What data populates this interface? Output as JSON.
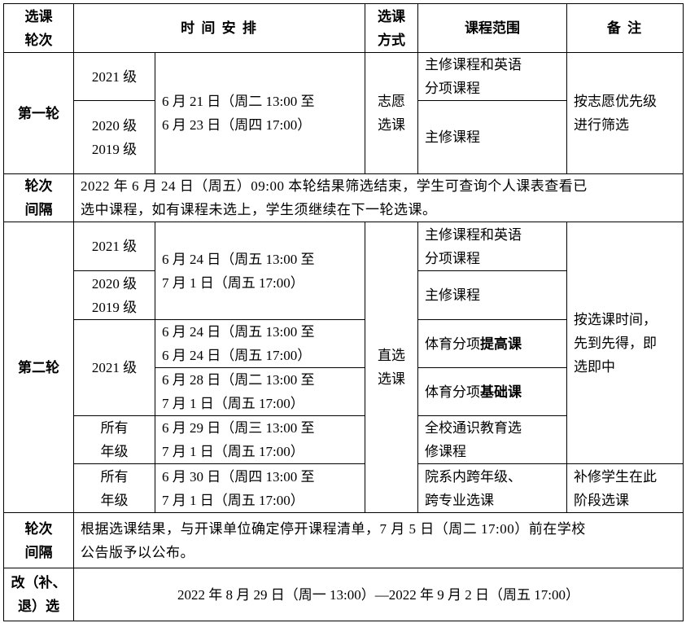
{
  "header": {
    "round": [
      "选课",
      "轮次"
    ],
    "schedule": "时 间 安 排",
    "method": [
      "选课",
      "方式"
    ],
    "scope": "课程范围",
    "remark": "备 注"
  },
  "round1": {
    "label": "第一轮",
    "grade_a": [
      "2021 级"
    ],
    "grade_b": [
      "2020 级",
      "2019 级"
    ],
    "time": [
      "6 月 21 日（周二 13:00 至",
      "6 月 23 日（周四 17:00）"
    ],
    "method": [
      "志愿",
      "选课"
    ],
    "scope_a": [
      "主修课程和英语",
      "分项课程"
    ],
    "scope_b": [
      "主修课程"
    ],
    "remark": [
      "按志愿优先级",
      "进行筛选"
    ]
  },
  "interval1": {
    "label": [
      "轮次",
      "间隔"
    ],
    "text": [
      "2022 年 6 月 24 日（周五）09:00 本轮结果筛选结束，学生可查询个人课表查看已",
      "选中课程，如有课程未选上，学生须继续在下一轮选课。"
    ]
  },
  "round2": {
    "label": "第二轮",
    "method": [
      "直选",
      "选课"
    ],
    "remark_main": [
      "按选课时间，",
      "先到先得，即",
      "选即中"
    ],
    "rows": [
      {
        "grade": [
          "2021 级"
        ],
        "scope": [
          "主修课程和英语",
          "分项课程"
        ]
      },
      {
        "grade": [
          "2020 级",
          "2019 级"
        ],
        "scope": [
          "主修课程"
        ]
      },
      {
        "grade": [
          "2021 级"
        ],
        "time": [
          "6 月 24 日（周五 13:00 至",
          "6 月 24 日（周五 17:00）"
        ],
        "scope_plain": "体育分项",
        "scope_bold": "提高课"
      },
      {
        "time": [
          "6 月 28 日（周二 13:00 至",
          "7 月 1 日（周五 17:00）"
        ],
        "scope_plain": "体育分项",
        "scope_bold": "基础课"
      },
      {
        "grade": [
          "所有",
          "年级"
        ],
        "time": [
          "6 月 29 日（周三 13:00 至",
          "7 月 1 日（周五 17:00）"
        ],
        "scope": [
          "全校通识教育选",
          "修课程"
        ]
      },
      {
        "grade": [
          "所有",
          "年级"
        ],
        "time": [
          "6 月 30 日（周四 13:00 至",
          "7 月 1 日（周五 17:00）"
        ],
        "scope": [
          "院系内跨年级、",
          "跨专业选课"
        ],
        "remark": [
          "补修学生在此",
          "阶段选课"
        ]
      }
    ],
    "time_first": [
      "6 月 24 日（周五 13:00 至",
      "7 月 1 日（周五 17:00）"
    ]
  },
  "interval2": {
    "label": [
      "轮次",
      "间隔"
    ],
    "text": [
      "根据选课结果，与开课单位确定停开课程清单，7 月 5 日（周二 17:00）前在学校",
      "公告版予以公布。"
    ]
  },
  "adjust": {
    "label": [
      "改（补、",
      "退）选"
    ],
    "text": "2022 年 8 月 29 日（周一 13:00）—2022 年 9 月 2 日（周五 17:00）"
  }
}
